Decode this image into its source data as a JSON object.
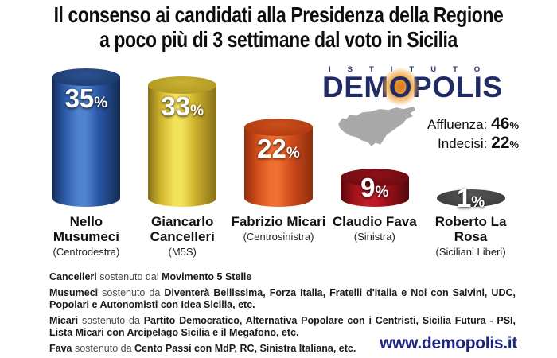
{
  "title": {
    "line1": "Il consenso ai candidati alla Presidenza della Regione",
    "line2": "a poco più di 3 settimane dal voto in Sicilia"
  },
  "logo": {
    "istituto": "ISTITUTO",
    "demo": "DEM",
    "o": "O",
    "polis": "POLIS",
    "navy": "#202a64",
    "glow_orange": "#eda13c"
  },
  "stats": {
    "affluenza_label": "Affluenza: ",
    "affluenza_value": "46",
    "indecisi_label": "Indecisi: ",
    "indecisi_value": "22",
    "pct_symbol": "%"
  },
  "chart_data": {
    "type": "bar",
    "title": "Il consenso ai candidati alla Presidenza della Regione a poco più di 3 settimane dal voto in Sicilia",
    "unit": "%",
    "categories": [
      "Nello Musumeci",
      "Giancarlo Cancelleri",
      "Fabrizio Micari",
      "Claudio Fava",
      "Roberto La Rosa"
    ],
    "parties": [
      "(Centrodestra)",
      "(M5S)",
      "(Centrosinistra)",
      "(Sinistra)",
      "(Siciliani Liberi)"
    ],
    "values": [
      35,
      33,
      22,
      9,
      1
    ],
    "legend": "none",
    "grid": false,
    "annotations": {
      "affluenza": 46,
      "indecisi": 22
    },
    "bar_colors": [
      {
        "main": "#2a58a6",
        "light": "#4f82cf",
        "dark": "#122b54",
        "cap": "#1d3c70",
        "caphi": "#2c528f"
      },
      {
        "main": "#cfb32c",
        "light": "#f3e159",
        "dark": "#87701a",
        "cap": "#b29a22",
        "caphi": "#c9b133"
      },
      {
        "main": "#d14c1b",
        "light": "#ef6e30",
        "dark": "#8e2e0d",
        "cap": "#b23c10",
        "caphi": "#c94f1d"
      },
      {
        "main": "#9c1119",
        "light": "#c01d29",
        "dark": "#53080d",
        "cap": "#700b11",
        "caphi": "#8d1019"
      },
      {
        "main": "#4f4f4f",
        "light": "#848484",
        "dark": "#262626",
        "cap": "#3c3c3c",
        "caphi": "#5a5a5a"
      }
    ]
  },
  "footnotes": [
    {
      "name": "Cancelleri",
      "connector": " sostenuto dal ",
      "parties": "Movimento 5 Stelle"
    },
    {
      "name": "Musumeci",
      "connector": " sostenuto da ",
      "parties": "Diventerà Bellissima, Forza Italia, Fratelli d'Italia e Noi con Salvini, UDC, Popolari e Autonomisti con Idea Sicilia, etc."
    },
    {
      "name": "Micari",
      "connector": " sostenuto da ",
      "parties": "Partito Democratico, Alternativa Popolare con i Centristi, Sicilia Futura - PSI, Lista Micari con Arcipelago Sicilia e il Megafono, etc."
    },
    {
      "name": "Fava",
      "connector": " sostenuto da ",
      "parties": "Cento Passi con MdP, RC, Sinistra Italiana, etc."
    }
  ],
  "website": "www.demopolis.it"
}
